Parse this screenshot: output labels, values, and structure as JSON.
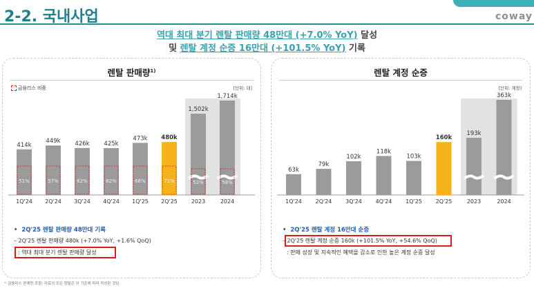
{
  "header": {
    "title": "2-2. 국내사업",
    "tab_label": "",
    "brand": "coway",
    "accent_color": "#3bb0b9"
  },
  "headline": {
    "line1_highlight": "역대 최대 분기 렌탈 판매량 48만대 (+7.0% YoY)",
    "line1_rest": " 달성",
    "line2_prefix": "및 ",
    "line2_highlight": "렌탈 계정 순증 16만대 (+101.5% YoY)",
    "line2_rest": " 기록"
  },
  "left_panel": {
    "title": "렌탈 판매량",
    "title_sup": "1)",
    "legend": "금융리스 비중",
    "unit": "[단위: 대]",
    "bullet": "2Q'25 렌탈 판매량 48만대 기록",
    "note1": "– 2Q'25 렌탈 판매량 480k (+7.0% YoY, +1.6% QoQ)",
    "note2": ": 역대 최대 분기 렌탈 판매량 달성"
  },
  "right_panel": {
    "title": "렌탈 계정 순증",
    "unit": "[단위: 계정]",
    "bullet": "2Q'25 렌탈 계정 16만대 순증",
    "note1": "2Q'25 렌탈 계정 순증 160k (+101.5% YoY, +54.6% QoQ)",
    "note2": ": 판매 성장 및 지속적인 혜택을 감소로 인한 높은 계정 순증 달성"
  },
  "footnote": "¹⁾ 금융리스 판매량 포함: 자료의 모든 렌탈은 이 기준에 따라 작성된 것임",
  "chart_data": [
    {
      "type": "bar",
      "title": "렌탈 판매량",
      "categories": [
        "1Q'24",
        "2Q'24",
        "3Q'24",
        "4Q'24",
        "1Q'25",
        "2Q'25",
        "2023",
        "2024"
      ],
      "values": [
        414,
        449,
        426,
        425,
        473,
        480,
        1502,
        1714
      ],
      "value_labels": [
        "414k",
        "449k",
        "426k",
        "425k",
        "473k",
        "480k",
        "1,502k",
        "1,714k"
      ],
      "finance_lease_share": [
        "51%",
        "57%",
        "62%",
        "62%",
        "66%",
        "71%",
        "52%",
        "58%"
      ],
      "finance_lease_share_values": [
        51,
        57,
        62,
        62,
        66,
        71,
        52,
        58
      ],
      "highlight_index": 5,
      "annual_group": [
        6,
        7
      ],
      "broken_axis_annual": true,
      "colors": {
        "bar": "#9b9b9b",
        "highlight": "#f5b21b",
        "annual_bg": "#e2e2e2",
        "share_outline": "#e02020"
      }
    },
    {
      "type": "bar",
      "title": "렌탈 계정 순증",
      "categories": [
        "1Q'24",
        "2Q'24",
        "3Q'24",
        "4Q'24",
        "1Q'25",
        "2Q'25",
        "2023",
        "2024"
      ],
      "values": [
        63,
        79,
        102,
        118,
        103,
        160,
        193,
        363
      ],
      "value_labels": [
        "63k",
        "79k",
        "102k",
        "118k",
        "103k",
        "160k",
        "193k",
        "363k"
      ],
      "highlight_index": 5,
      "annual_group": [
        6,
        7
      ],
      "broken_axis_annual": true,
      "colors": {
        "bar": "#9b9b9b",
        "highlight": "#f5b21b",
        "annual_bg": "#e2e2e2"
      }
    }
  ]
}
